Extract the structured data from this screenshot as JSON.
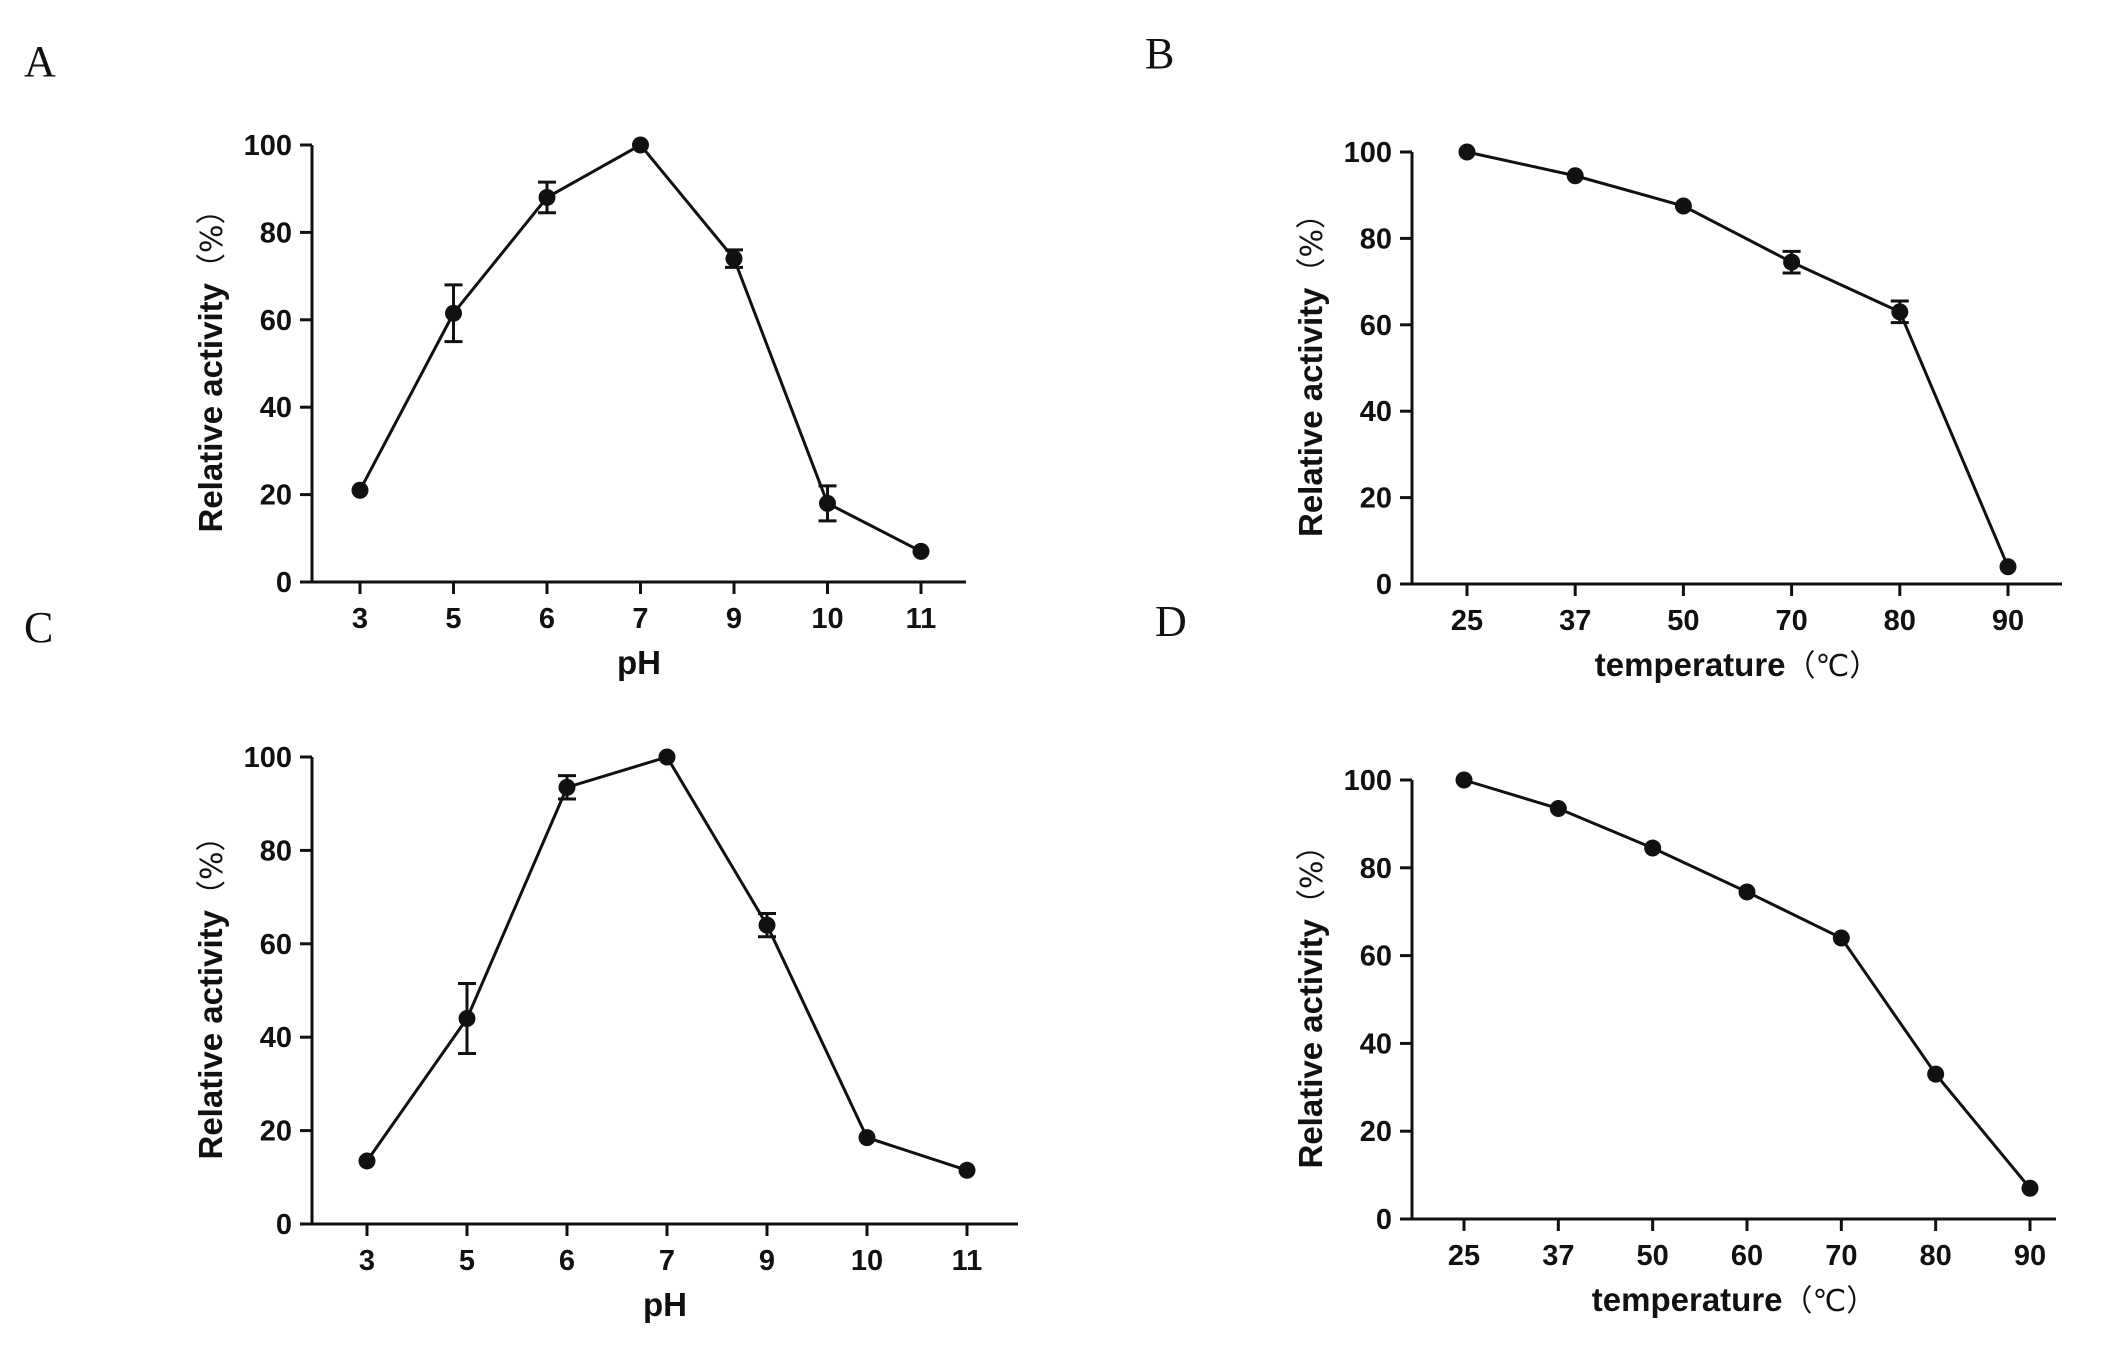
{
  "chart_data": [
    {
      "panel": "A",
      "type": "line",
      "title": "",
      "xlabel": "pH",
      "xlabel_unit": "",
      "ylabel": "Relative activity",
      "ylabel_unit": "（%）",
      "categories": [
        "3",
        "5",
        "6",
        "7",
        "9",
        "10",
        "11"
      ],
      "values": [
        21,
        61.5,
        88,
        100,
        74,
        18,
        7
      ],
      "errors": [
        0,
        6.5,
        3.5,
        0,
        2,
        4,
        0
      ],
      "ylim": [
        0,
        100
      ],
      "yticks": [
        0,
        20,
        40,
        60,
        80,
        100
      ],
      "grid": false
    },
    {
      "panel": "B",
      "type": "line",
      "title": "",
      "xlabel": "temperature",
      "xlabel_unit": "（℃）",
      "ylabel": "Relative activity",
      "ylabel_unit": "（%）",
      "categories": [
        "25",
        "37",
        "50",
        "70",
        "80",
        "90"
      ],
      "values": [
        100,
        94.5,
        87.5,
        74.5,
        63,
        4
      ],
      "errors": [
        0,
        0,
        0,
        2.5,
        2.5,
        0
      ],
      "ylim": [
        0,
        100
      ],
      "yticks": [
        0,
        20,
        40,
        60,
        80,
        100
      ],
      "grid": false
    },
    {
      "panel": "C",
      "type": "line",
      "title": "",
      "xlabel": "pH",
      "xlabel_unit": "",
      "ylabel": "Relative activity",
      "ylabel_unit": "（%）",
      "categories": [
        "3",
        "5",
        "6",
        "7",
        "9",
        "10",
        "11"
      ],
      "values": [
        13.5,
        44,
        93.5,
        100,
        64,
        18.5,
        11.5
      ],
      "errors": [
        0,
        7.5,
        2.5,
        0,
        2.5,
        0,
        0
      ],
      "ylim": [
        0,
        100
      ],
      "yticks": [
        0,
        20,
        40,
        60,
        80,
        100
      ],
      "grid": false
    },
    {
      "panel": "D",
      "type": "line",
      "title": "",
      "xlabel": "temperature",
      "xlabel_unit": "（℃）",
      "ylabel": "Relative activity",
      "ylabel_unit": "（%）",
      "categories": [
        "25",
        "37",
        "50",
        "60",
        "70",
        "80",
        "90"
      ],
      "values": [
        100,
        93.5,
        84.5,
        74.5,
        64,
        33,
        7
      ],
      "errors": [
        0,
        0,
        0,
        0,
        0,
        0,
        0
      ],
      "ylim": [
        0,
        100
      ],
      "yticks": [
        0,
        20,
        40,
        60,
        80,
        100
      ],
      "grid": false
    }
  ]
}
